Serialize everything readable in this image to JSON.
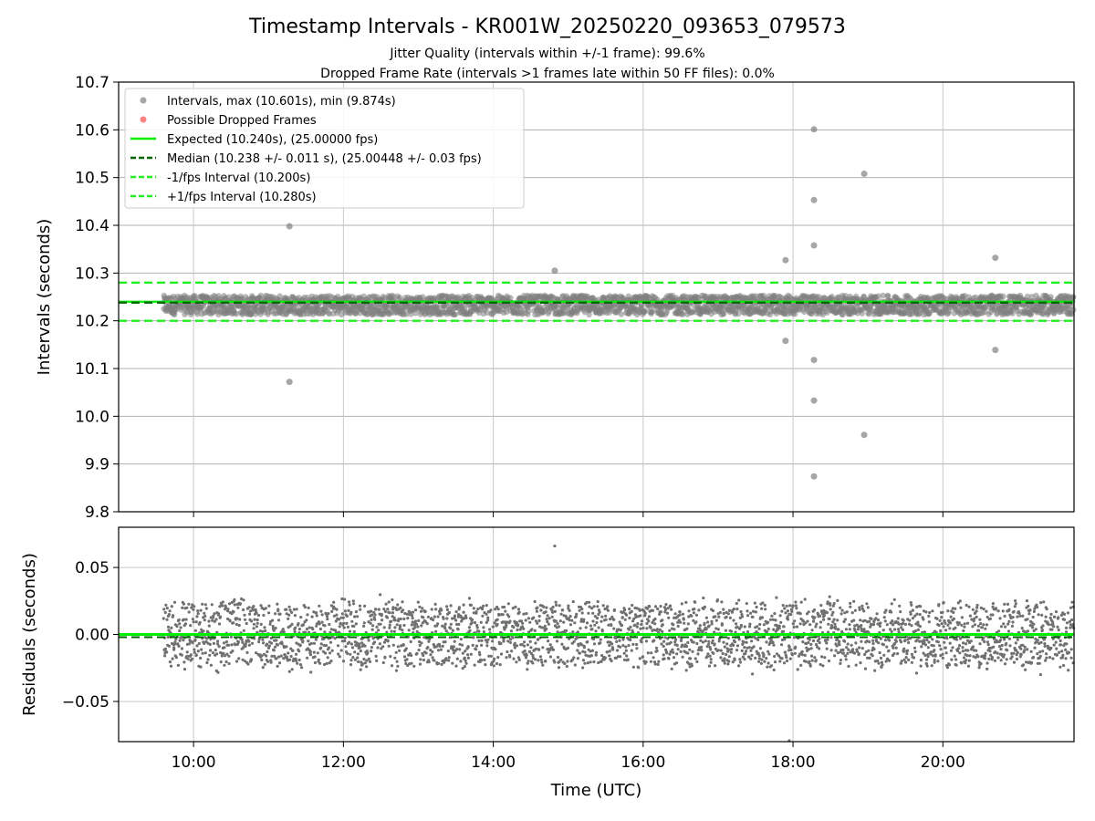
{
  "chart_data": [
    {
      "type": "scatter",
      "title": "Timestamp Intervals - KR001W_20250220_093653_079573",
      "subtitle_lines": [
        "Jitter Quality (intervals within +/-1 frame): 99.6%",
        "Dropped Frame Rate (intervals >1 frames late within 50 FF files): 0.0%"
      ],
      "ylabel": "Intervals (seconds)",
      "xlim_hours": [
        9.0,
        21.75
      ],
      "ylim": [
        9.8,
        10.7
      ],
      "yticks": [
        9.8,
        9.9,
        10.0,
        10.1,
        10.2,
        10.3,
        10.4,
        10.5,
        10.6,
        10.7
      ],
      "ytick_labels": [
        "9.8",
        "9.9",
        "10.0",
        "10.1",
        "10.2",
        "10.3",
        "10.4",
        "10.5",
        "10.6",
        "10.7"
      ],
      "grid": true,
      "legend_position": "top-left",
      "legend": [
        {
          "label": "Intervals, max (10.601s), min (9.874s)",
          "kind": "marker",
          "color": "#808080"
        },
        {
          "label": "Possible Dropped Frames",
          "kind": "marker",
          "color": "#ff4d4d"
        },
        {
          "label": "Expected (10.240s), (25.00000 fps)",
          "kind": "solid",
          "color": "#00ee00"
        },
        {
          "label": "Median (10.238 +/- 0.011 s), (25.00448 +/- 0.03 fps)",
          "kind": "dashed",
          "color": "#006400"
        },
        {
          "label": "-1/fps Interval (10.200s)",
          "kind": "dashed",
          "color": "#22ee22"
        },
        {
          "label": "+1/fps Interval (10.280s)",
          "kind": "dashed",
          "color": "#22ee22"
        }
      ],
      "reference_lines": {
        "expected": 10.24,
        "median": 10.238,
        "minus_one_frame": 10.2,
        "plus_one_frame": 10.28
      },
      "data_time_range_hours": [
        9.6,
        21.75
      ],
      "bulk_band": {
        "center": 10.233,
        "spread": 0.02
      },
      "outliers": [
        {
          "t": 11.28,
          "y": 10.398
        },
        {
          "t": 11.28,
          "y": 10.072
        },
        {
          "t": 14.82,
          "y": 10.305
        },
        {
          "t": 17.9,
          "y": 10.327
        },
        {
          "t": 17.9,
          "y": 10.158
        },
        {
          "t": 18.28,
          "y": 10.601
        },
        {
          "t": 18.28,
          "y": 10.453
        },
        {
          "t": 18.28,
          "y": 10.358
        },
        {
          "t": 18.28,
          "y": 10.118
        },
        {
          "t": 18.28,
          "y": 10.033
        },
        {
          "t": 18.28,
          "y": 9.874
        },
        {
          "t": 18.95,
          "y": 10.508
        },
        {
          "t": 18.95,
          "y": 9.961
        },
        {
          "t": 20.7,
          "y": 10.332
        },
        {
          "t": 20.7,
          "y": 10.139
        }
      ],
      "colors": {
        "points": "#808080",
        "expected": "#00ee00",
        "median": "#006400",
        "bounds": "#22ee22",
        "grid": "#b0b0b0"
      }
    },
    {
      "type": "scatter",
      "xlabel": "Time (UTC)",
      "ylabel": "Residuals (seconds)",
      "xlim_hours": [
        9.0,
        21.75
      ],
      "xticks_hours": [
        10,
        12,
        14,
        16,
        18,
        20
      ],
      "xtick_labels": [
        "10:00",
        "12:00",
        "14:00",
        "16:00",
        "18:00",
        "20:00"
      ],
      "ylim": [
        -0.08,
        0.08
      ],
      "yticks": [
        -0.05,
        0.0,
        0.05
      ],
      "ytick_labels": [
        "−0.05",
        "0.00",
        "0.05"
      ],
      "grid": true,
      "zero_line": 0.0,
      "median_offset": -0.002,
      "residual_band": {
        "spread": 0.03
      },
      "outliers": [
        {
          "t": 14.82,
          "y": 0.066
        },
        {
          "t": 17.95,
          "y": -0.082
        }
      ],
      "colors": {
        "points": "#707070",
        "zero": "#00ee00",
        "median": "#006400"
      }
    }
  ]
}
